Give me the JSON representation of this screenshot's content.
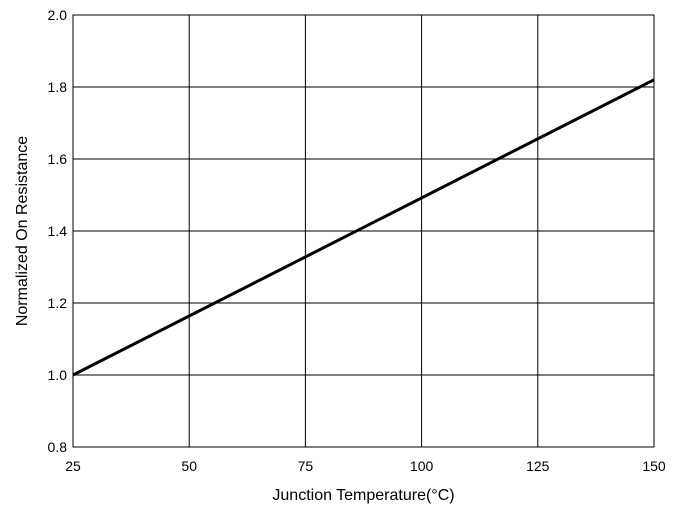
{
  "chart_data": {
    "type": "line",
    "xlabel": "Junction Temperature(°C)",
    "ylabel": "Normalized On Resistance",
    "xlim": [
      25,
      150
    ],
    "ylim": [
      0.8,
      2.0
    ],
    "x_ticks": [
      25,
      50,
      75,
      100,
      125,
      150
    ],
    "y_ticks": [
      "0.8",
      "1.0",
      "1.2",
      "1.4",
      "1.6",
      "1.8",
      "2.0"
    ],
    "grid": true,
    "series": [
      {
        "x": [
          25,
          150
        ],
        "y": [
          1.0,
          1.82
        ],
        "color": "#000000"
      }
    ]
  }
}
